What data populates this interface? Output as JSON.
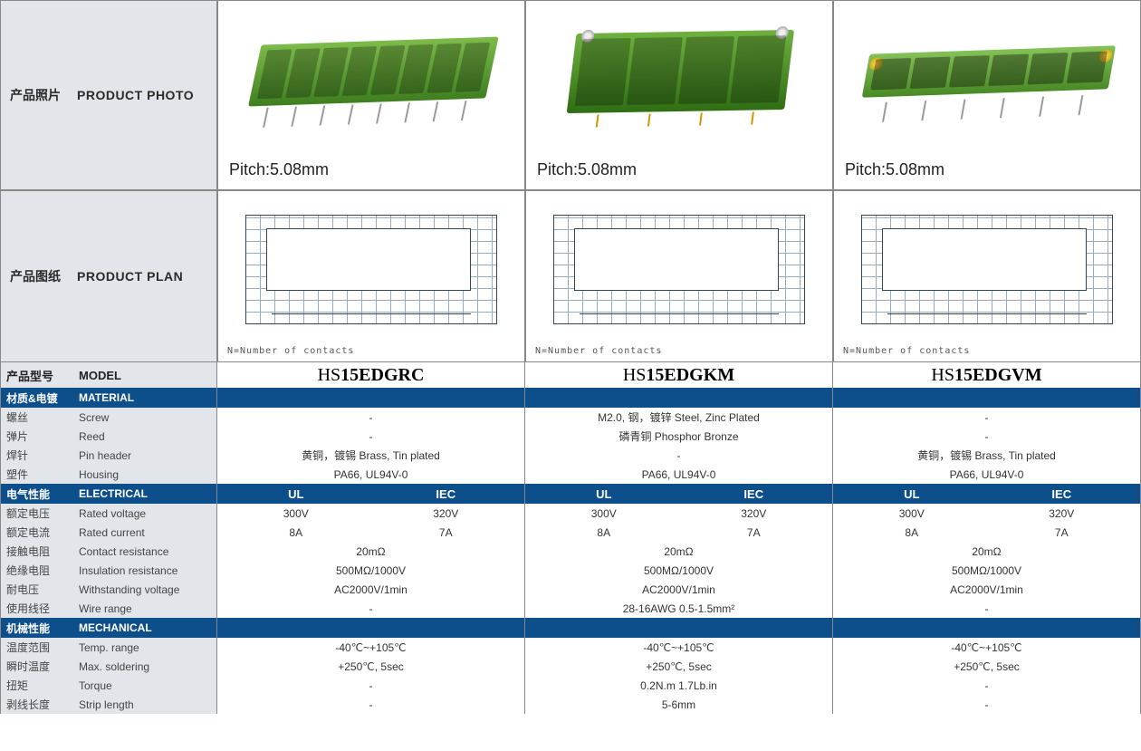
{
  "labels": {
    "photo_cn": "产品照片",
    "photo_en": "PRODUCT PHOTO",
    "plan_cn": "产品图纸",
    "plan_en": "PRODUCT PLAN",
    "model_cn": "产品型号",
    "model_en": "MODEL",
    "material_cn": "材质&电镀",
    "material_en": "MATERIAL",
    "screw_cn": "螺丝",
    "screw_en": "Screw",
    "reed_cn": "弹片",
    "reed_en": "Reed",
    "pin_cn": "焊针",
    "pin_en": "Pin header",
    "housing_cn": "塑件",
    "housing_en": "Housing",
    "electrical_cn": "电气性能",
    "electrical_en": "ELECTRICAL",
    "rv_cn": "额定电压",
    "rv_en": "Rated voltage",
    "rc_cn": "额定电流",
    "rc_en": "Rated current",
    "cr_cn": "接触电阻",
    "cr_en": "Contact resistance",
    "ir_cn": "绝缘电阻",
    "ir_en": "Insulation resistance",
    "wv_cn": "耐电压",
    "wv_en": "Withstanding voltage",
    "wr_cn": "使用线径",
    "wr_en": "Wire range",
    "mech_cn": "机械性能",
    "mech_en": "MECHANICAL",
    "tr_cn": "温度范围",
    "tr_en": "Temp. range",
    "ms_cn": "瞬时温度",
    "ms_en": "Max. soldering",
    "tq_cn": "扭矩",
    "tq_en": "Torque",
    "sl_cn": "剥线长度",
    "sl_en": "Strip length"
  },
  "pitch": "Pitch:5.08mm",
  "plan_note": "N=Number of contacts",
  "elec_hdr": {
    "ul": "UL",
    "iec": "IEC"
  },
  "products": [
    {
      "model_prefix": "HS",
      "model_bold": "15EDGRC",
      "screw": "-",
      "reed": "-",
      "pin": "黄铜，镀锡 Brass, Tin plated",
      "housing": "PA66, UL94V-0",
      "rv_ul": "300V",
      "rv_iec": "320V",
      "rc_ul": "8A",
      "rc_iec": "7A",
      "cr": "20mΩ",
      "ir": "500MΩ/1000V",
      "wv": "AC2000V/1min",
      "wr": "-",
      "tr": "-40℃~+105℃",
      "ms": "+250℃, 5sec",
      "tq": "-",
      "sl": "-"
    },
    {
      "model_prefix": "HS",
      "model_bold": "15EDGKM",
      "screw": "M2.0, 钢，镀锌 Steel, Zinc Plated",
      "reed": "磷青铜 Phosphor Bronze",
      "pin": "-",
      "housing": "PA66, UL94V-0",
      "rv_ul": "300V",
      "rv_iec": "320V",
      "rc_ul": "8A",
      "rc_iec": "7A",
      "cr": "20mΩ",
      "ir": "500MΩ/1000V",
      "wv": "AC2000V/1min",
      "wr": "28-16AWG 0.5-1.5mm²",
      "tr": "-40℃~+105℃",
      "ms": "+250℃, 5sec",
      "tq": "0.2N.m 1.7Lb.in",
      "sl": "5-6mm"
    },
    {
      "model_prefix": "HS",
      "model_bold": "15EDGVM",
      "screw": "-",
      "reed": "-",
      "pin": "黄铜，镀锡 Brass, Tin plated",
      "housing": "PA66, UL94V-0",
      "rv_ul": "300V",
      "rv_iec": "320V",
      "rc_ul": "8A",
      "rc_iec": "7A",
      "cr": "20mΩ",
      "ir": "500MΩ/1000V",
      "wv": "AC2000V/1min",
      "wr": "-",
      "tr": "-40℃~+105℃",
      "ms": "+250℃, 5sec",
      "tq": "-",
      "sl": "-"
    }
  ],
  "colors": {
    "header_bg": "#0d4f8b",
    "label_bg": "#e2e6eb",
    "border": "#888888",
    "terminal_green": "#5fa332"
  }
}
